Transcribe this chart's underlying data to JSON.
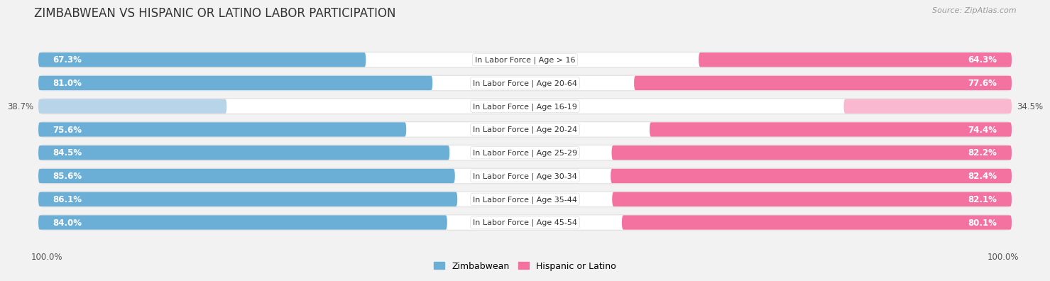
{
  "title": "ZIMBABWEAN VS HISPANIC OR LATINO LABOR PARTICIPATION",
  "source": "Source: ZipAtlas.com",
  "categories": [
    "In Labor Force | Age > 16",
    "In Labor Force | Age 20-64",
    "In Labor Force | Age 16-19",
    "In Labor Force | Age 20-24",
    "In Labor Force | Age 25-29",
    "In Labor Force | Age 30-34",
    "In Labor Force | Age 35-44",
    "In Labor Force | Age 45-54"
  ],
  "zimbabwean_values": [
    67.3,
    81.0,
    38.7,
    75.6,
    84.5,
    85.6,
    86.1,
    84.0
  ],
  "hispanic_values": [
    64.3,
    77.6,
    34.5,
    74.4,
    82.2,
    82.4,
    82.1,
    80.1
  ],
  "zimbabwean_color_full": "#6baed6",
  "zimbabwean_color_light": "#b8d4e8",
  "hispanic_color_full": "#f472a0",
  "hispanic_color_light": "#f9b8cf",
  "label_color_white": "#ffffff",
  "label_color_dark": "#555555",
  "bar_height": 0.62,
  "track_color": "#e8e8e8",
  "background_color": "#f2f2f2",
  "row_bg": "#f8f8f8",
  "axis_label_left": "100.0%",
  "axis_label_right": "100.0%",
  "legend_labels": [
    "Zimbabwean",
    "Hispanic or Latino"
  ],
  "title_fontsize": 12,
  "label_fontsize": 8.5,
  "category_fontsize": 8,
  "axis_tick_fontsize": 8.5,
  "max_val": 100
}
